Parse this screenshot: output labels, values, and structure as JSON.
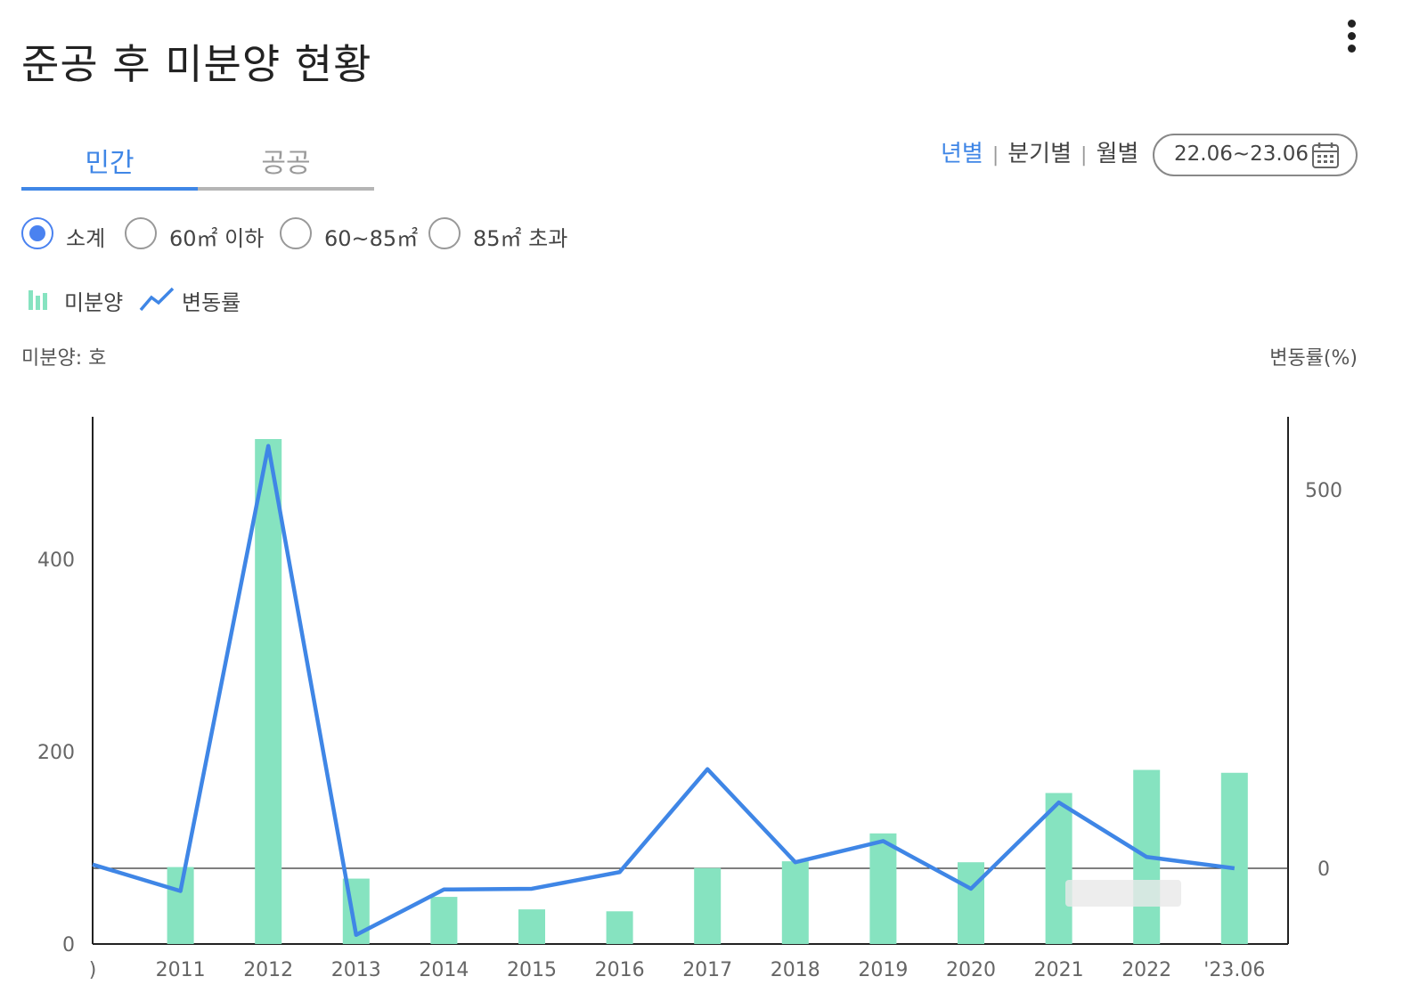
{
  "header": {
    "title": "준공 후 미분양 현황"
  },
  "tabs": [
    {
      "label": "민간",
      "active": true
    },
    {
      "label": "공공",
      "active": false
    }
  ],
  "period": {
    "options": [
      "년별",
      "분기별",
      "월별"
    ],
    "selected": "년별",
    "separator": "|",
    "date_range": "22.06~23.06"
  },
  "filters": {
    "options": [
      "소계",
      "60㎡ 이하",
      "60~85㎡",
      "85㎡ 초과"
    ],
    "selected": "소계"
  },
  "legend": {
    "bar_label": "미분양",
    "line_label": "변동률"
  },
  "units": {
    "left": "미분양: 호",
    "right": "변동률(%)"
  },
  "colors": {
    "accent": "#3f86e6",
    "bar": "#86e3c0",
    "line": "#3f86e6",
    "radio": "#4a82f0"
  },
  "chart_data": {
    "type": "bar",
    "categories": [
      ")",
      "2011",
      "2012",
      "2013",
      "2014",
      "2015",
      "2016",
      "2017",
      "2018",
      "2019",
      "2020",
      "2021",
      "2022",
      "'23.06"
    ],
    "series": [
      {
        "name": "미분양",
        "type": "bar",
        "axis": "left",
        "values": [
          null,
          80,
          525,
          68,
          49,
          36,
          34,
          79,
          86,
          115,
          85,
          157,
          181,
          178
        ]
      },
      {
        "name": "변동률",
        "type": "line",
        "axis": "right",
        "values": [
          5,
          -30,
          558,
          -88,
          -28,
          -27,
          -5,
          131,
          8,
          36,
          -27,
          87,
          15,
          0
        ]
      }
    ],
    "y_left": {
      "ticks": [
        0,
        200,
        400
      ],
      "range": [
        0,
        550
      ]
    },
    "y_right": {
      "ticks": [
        0,
        500
      ],
      "range": [
        -100,
        600
      ]
    },
    "grid": false
  }
}
